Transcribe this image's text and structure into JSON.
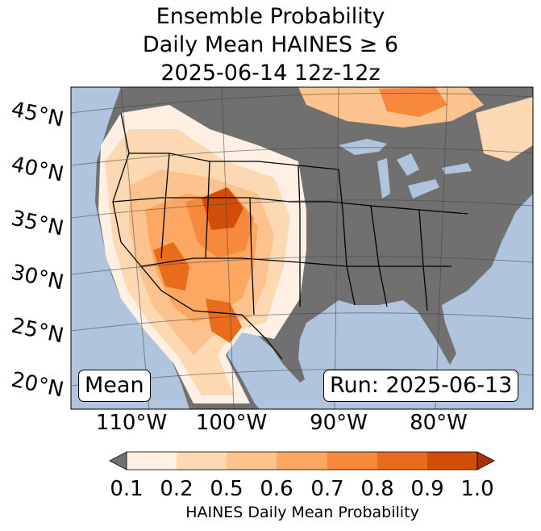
{
  "title": {
    "line1": "Ensemble Probability",
    "line2": "Daily Mean HAINES ≥ 6",
    "line3": "2025-06-14 12z-12z"
  },
  "map": {
    "projection": "lambert-conformal",
    "latitude_labels": [
      "45°N",
      "40°N",
      "35°N",
      "30°N",
      "25°N",
      "20°N"
    ],
    "longitude_labels": [
      "110°W",
      "100°W",
      "90°W",
      "80°W"
    ],
    "stat_label": "Mean",
    "run_label": "Run: 2025-06-13",
    "colors": {
      "ocean": "#b0c4de",
      "below_threshold": "#707070",
      "land_grid": "#888888"
    }
  },
  "colorbar": {
    "ticks": [
      "0.1",
      "0.2",
      "0.5",
      "0.6",
      "0.7",
      "0.8",
      "0.9",
      "1.0"
    ],
    "colors": [
      "#fff0e3",
      "#fdd9b3",
      "#fdc38e",
      "#fda862",
      "#f6893c",
      "#e96b1c",
      "#d24e08"
    ],
    "under_color": "#707070",
    "over_color": "#a83200",
    "label": "HAINES Daily Mean Probability"
  }
}
